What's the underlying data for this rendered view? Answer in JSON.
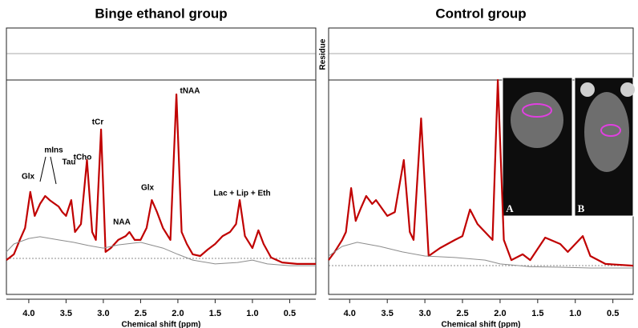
{
  "chart_data": [
    {
      "type": "line",
      "title": "Binge ethanol group",
      "xlabel": "Chemical shift (ppm)",
      "xlim": [
        4.3,
        0.15
      ],
      "ylim": [
        0,
        100
      ],
      "xticks": [
        {
          "value": 4,
          "label": "4.0"
        },
        3.5,
        {
          "value": 3,
          "label": "3.0"
        },
        2.5,
        {
          "value": 2,
          "label": "2.0"
        },
        1.5,
        {
          "value": 1,
          "label": "1.0"
        },
        0.5
      ],
      "annotations": [
        "Glx",
        "mIns",
        "Tau",
        "tCho",
        "tCr",
        "NAA",
        "Glx",
        "tNAA",
        "Lac + Lip + Eth"
      ],
      "series": [
        {
          "color": "#c00000",
          "x": [
            4.3,
            4.2,
            4.12,
            4.05,
            3.98,
            3.92,
            3.85,
            3.78,
            3.72,
            3.65,
            3.6,
            3.55,
            3.5,
            3.43,
            3.38,
            3.3,
            3.22,
            3.15,
            3.1,
            3.03,
            2.97,
            2.9,
            2.8,
            2.7,
            2.65,
            2.58,
            2.5,
            2.42,
            2.35,
            2.28,
            2.2,
            2.1,
            2.02,
            1.95,
            1.88,
            1.8,
            1.7,
            1.6,
            1.5,
            1.4,
            1.3,
            1.22,
            1.17,
            1.1,
            1.0,
            0.92,
            0.85,
            0.75,
            0.6,
            0.4,
            0.15
          ],
          "values": [
            16.0,
            18.7,
            25.4,
            31.0,
            47.8,
            36.6,
            42.2,
            45.9,
            44.0,
            42.2,
            41.0,
            38.4,
            36.6,
            44.0,
            29.1,
            32.8,
            62.7,
            29.1,
            25.4,
            76.9,
            19.8,
            21.6,
            25.4,
            27.2,
            29.1,
            25.4,
            25.4,
            31.0,
            44.0,
            38.4,
            31.0,
            25.4,
            93.3,
            29.1,
            23.5,
            18.7,
            17.9,
            20.9,
            23.5,
            27.2,
            29.1,
            32.8,
            44.0,
            27.2,
            21.6,
            29.9,
            23.5,
            17.2,
            14.9,
            14.2,
            14.2
          ]
        },
        {
          "color": "#8c8c8c",
          "x": [
            4.3,
            4.2,
            4.0,
            3.85,
            3.6,
            3.4,
            3.2,
            3.0,
            2.8,
            2.5,
            2.2,
            2.0,
            1.8,
            1.5,
            1.2,
            1.0,
            0.8,
            0.5,
            0.15
          ],
          "values": [
            19.8,
            23.5,
            26.1,
            26.9,
            25.4,
            24.3,
            22.8,
            21.6,
            23.1,
            24.3,
            21.6,
            18.7,
            16.0,
            14.2,
            14.9,
            16.0,
            14.2,
            13.4,
            13.4
          ]
        }
      ]
    },
    {
      "type": "line",
      "title": "Control group",
      "xlabel": "Chemical shift (ppm)",
      "residue_label": "Residue",
      "xlim": [
        4.28,
        0.23
      ],
      "ylim": [
        0,
        100
      ],
      "xticks": [
        {
          "value": 4,
          "label": "4.0"
        },
        3.5,
        {
          "value": 3,
          "label": "3.0"
        },
        2.5,
        {
          "value": 2,
          "label": "2.0"
        },
        1.5,
        {
          "value": 1,
          "label": "1.0"
        },
        0.5
      ],
      "insets": [
        "A",
        "B"
      ],
      "series": [
        {
          "color": "#c00000",
          "x": [
            4.28,
            4.2,
            4.1,
            4.05,
            3.98,
            3.92,
            3.85,
            3.78,
            3.7,
            3.65,
            3.5,
            3.4,
            3.28,
            3.2,
            3.15,
            3.05,
            2.95,
            2.8,
            2.6,
            2.5,
            2.4,
            2.3,
            2.1,
            2.03,
            1.95,
            1.85,
            1.7,
            1.6,
            1.4,
            1.2,
            1.1,
            0.9,
            0.8,
            0.6,
            0.23
          ],
          "values": [
            16.0,
            19.8,
            25.4,
            29.1,
            49.6,
            34.3,
            40.3,
            45.9,
            42.2,
            44.0,
            36.6,
            38.4,
            62.7,
            29.1,
            25.4,
            82.1,
            17.9,
            21.6,
            25.4,
            27.2,
            39.6,
            32.8,
            25.4,
            100,
            25.4,
            16.0,
            18.7,
            16.0,
            26.5,
            23.5,
            19.8,
            27.2,
            17.9,
            14.2,
            13.4
          ]
        },
        {
          "color": "#8c8c8c",
          "x": [
            4.28,
            4.1,
            3.9,
            3.6,
            3.3,
            3.0,
            2.6,
            2.2,
            2.0,
            1.6,
            1.2,
            0.8,
            0.23
          ],
          "values": [
            17.9,
            22.4,
            24.3,
            22.4,
            19.8,
            17.9,
            17.2,
            16.0,
            14.2,
            12.9,
            12.7,
            12.3,
            12.3
          ]
        }
      ]
    }
  ]
}
